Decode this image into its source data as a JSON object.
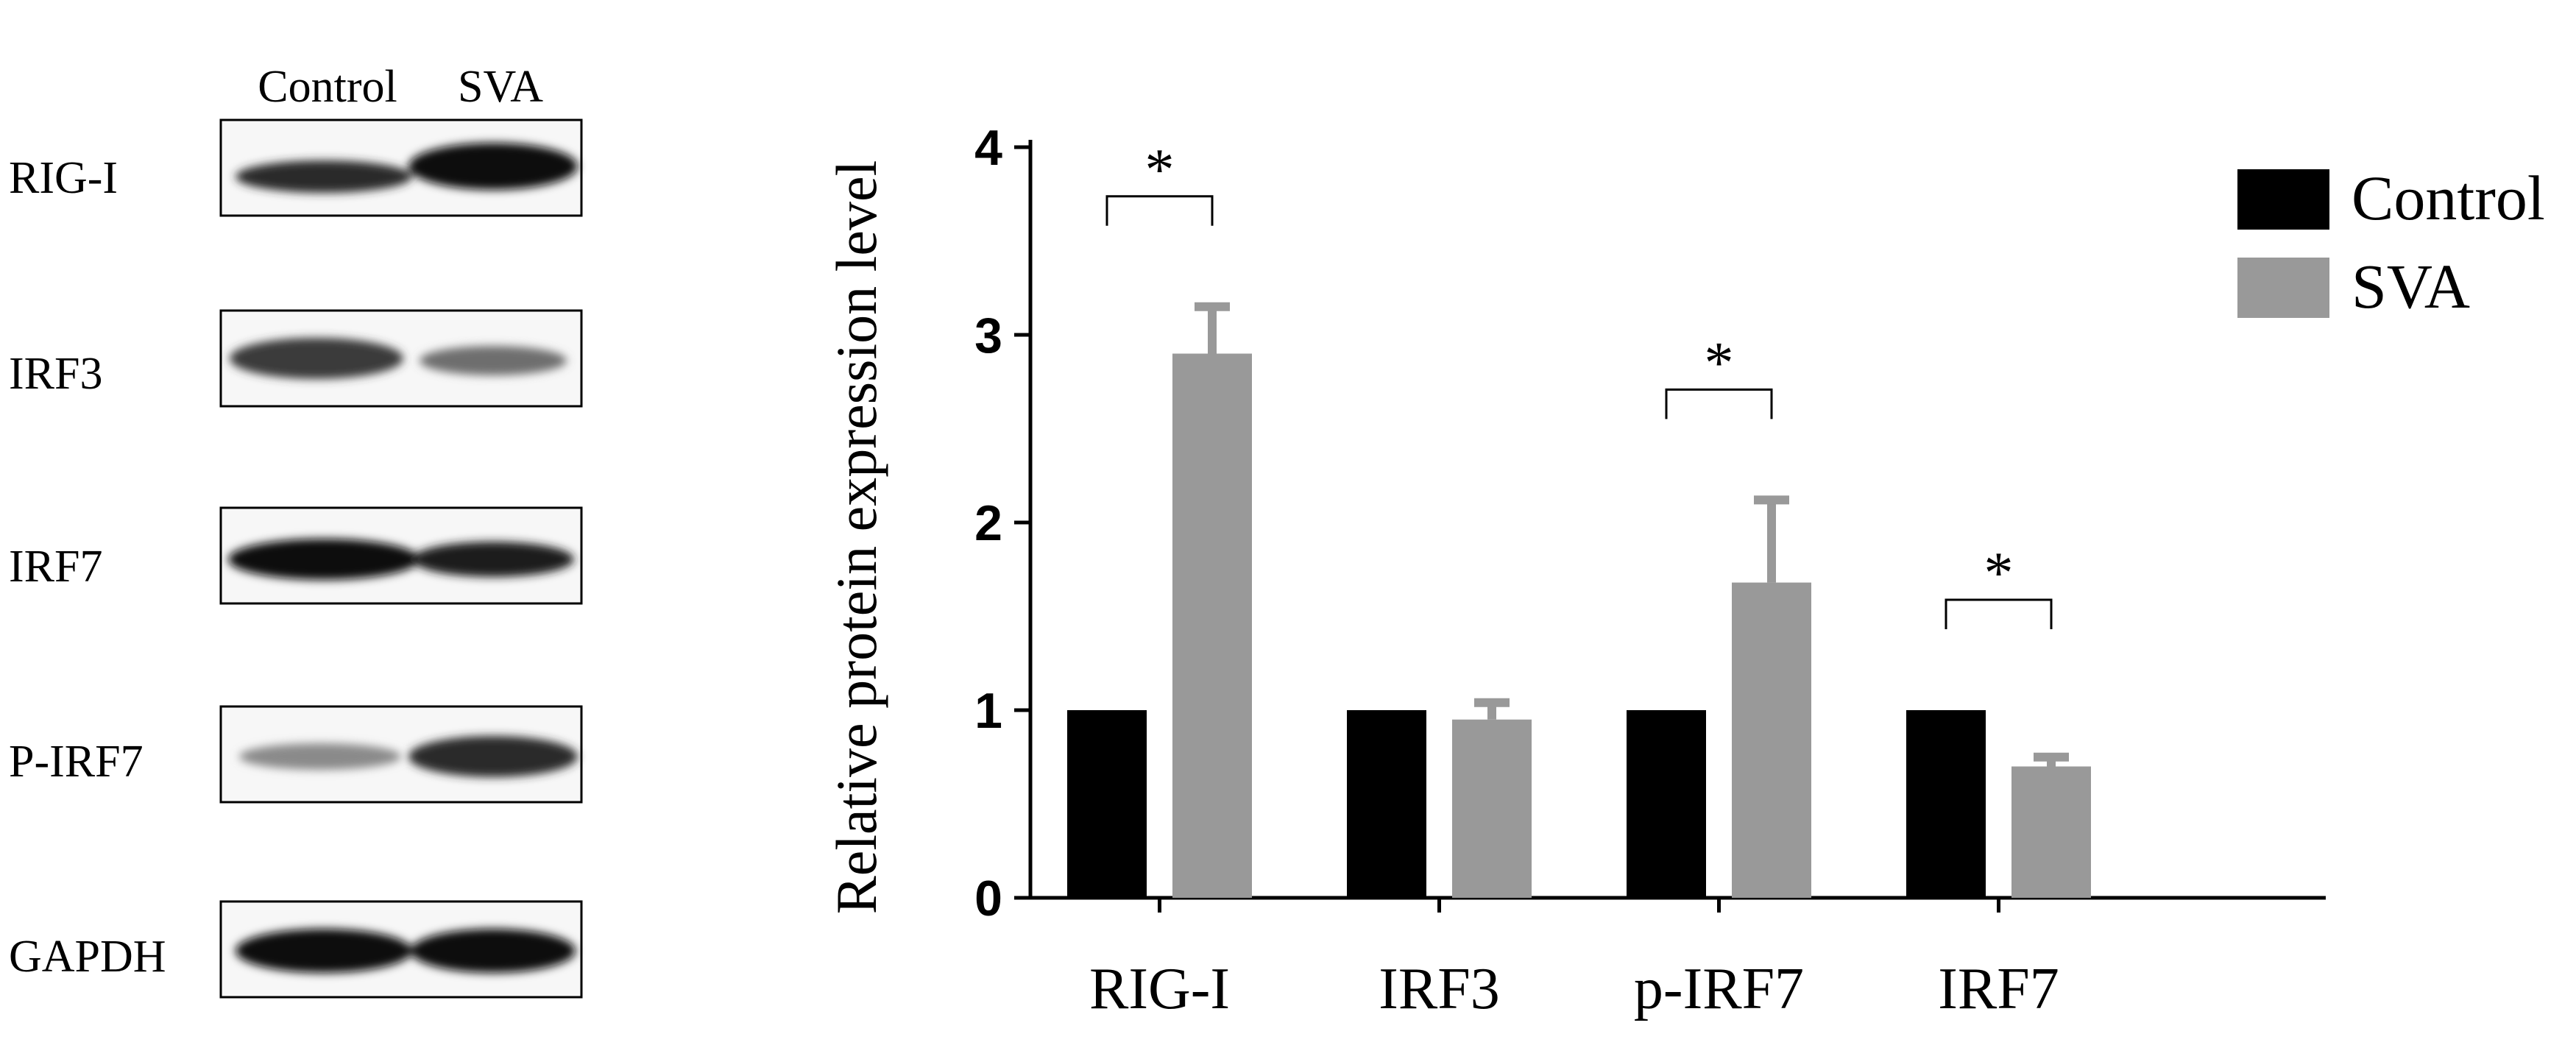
{
  "western_blot": {
    "lane_labels": [
      "Control",
      "SVA"
    ],
    "bands": [
      {
        "label": "RIG-I"
      },
      {
        "label": "IRF3"
      },
      {
        "label": "IRF7"
      },
      {
        "label": "P-IRF7"
      },
      {
        "label": "GAPDH"
      }
    ]
  },
  "chart_data": {
    "type": "bar",
    "title": "",
    "xlabel": "",
    "ylabel": "Relative protein expression level",
    "categories": [
      "RIG-I",
      "IRF3",
      "p-IRF7",
      "IRF7"
    ],
    "ylim": [
      0,
      4
    ],
    "yticks": [
      "0",
      "1",
      "2",
      "3",
      "4"
    ],
    "grid": false,
    "legend_position": "top-right",
    "series": [
      {
        "name": "Control",
        "color": "#000000",
        "values": [
          1.0,
          1.0,
          1.0,
          1.0
        ],
        "errors": [
          0,
          0,
          0,
          0
        ]
      },
      {
        "name": "SVA",
        "color": "#999999",
        "values": [
          2.9,
          0.95,
          1.68,
          0.7
        ],
        "errors": [
          0.25,
          0.09,
          0.44,
          0.05
        ]
      }
    ],
    "significance": [
      {
        "category": "RIG-I",
        "label": "*"
      },
      {
        "category": "p-IRF7",
        "label": "*"
      },
      {
        "category": "IRF7",
        "label": "*"
      }
    ]
  }
}
